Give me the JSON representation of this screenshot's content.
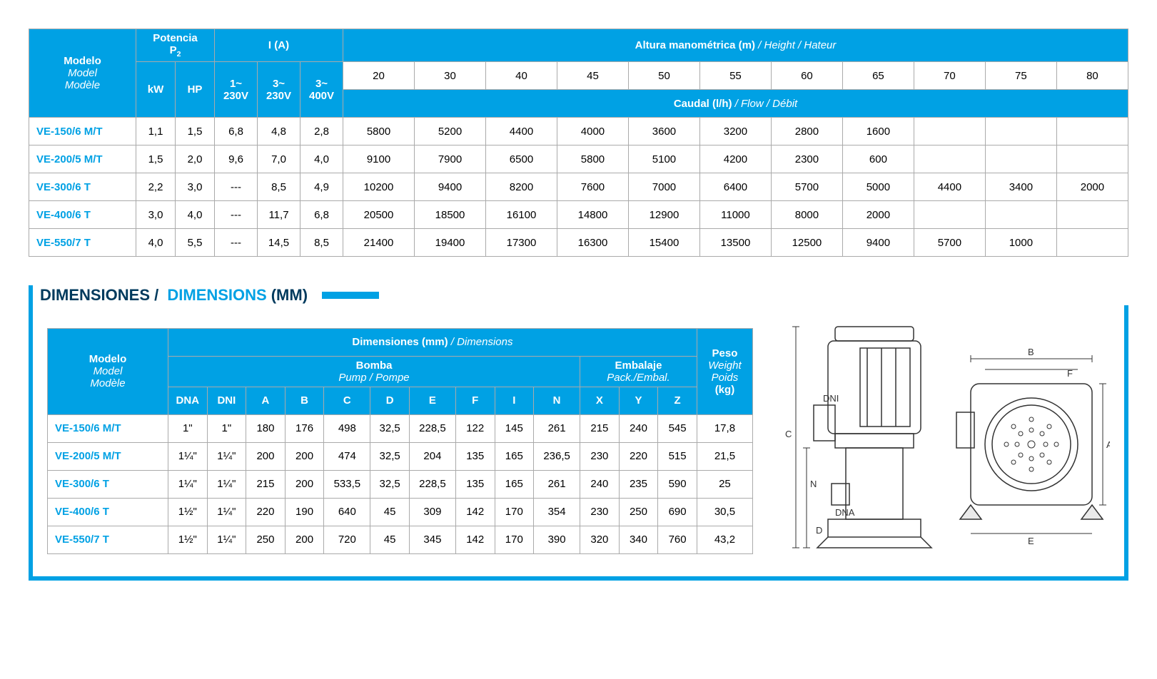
{
  "colors": {
    "header_bg": "#00a1e4",
    "header_text": "#ffffff",
    "border": "#aaaaaa",
    "model_text": "#00a1e4",
    "title_dark": "#003a5d"
  },
  "perf_table": {
    "headers": {
      "model": "Modelo\nModel\nModèle",
      "power": "Potencia",
      "power_sub": "P",
      "power_sub2": "2",
      "kw": "kW",
      "hp": "HP",
      "current": "I (A)",
      "c1": "1~\n230V",
      "c2": "3~\n230V",
      "c3": "3~\n400V",
      "height": "Altura manométrica (m)",
      "height_it": " / Height / Hateur",
      "flow": "Caudal (l/h)",
      "flow_it": " / Flow / Débit",
      "height_vals": [
        "20",
        "30",
        "40",
        "45",
        "50",
        "55",
        "60",
        "65",
        "70",
        "75",
        "80"
      ]
    },
    "rows": [
      {
        "model": "VE-150/6 M/T",
        "kw": "1,1",
        "hp": "1,5",
        "c1": "6,8",
        "c2": "4,8",
        "c3": "2,8",
        "f": [
          "5800",
          "5200",
          "4400",
          "4000",
          "3600",
          "3200",
          "2800",
          "1600",
          "",
          "",
          ""
        ]
      },
      {
        "model": "VE-200/5 M/T",
        "kw": "1,5",
        "hp": "2,0",
        "c1": "9,6",
        "c2": "7,0",
        "c3": "4,0",
        "f": [
          "9100",
          "7900",
          "6500",
          "5800",
          "5100",
          "4200",
          "2300",
          "600",
          "",
          "",
          ""
        ]
      },
      {
        "model": "VE-300/6 T",
        "kw": "2,2",
        "hp": "3,0",
        "c1": "---",
        "c2": "8,5",
        "c3": "4,9",
        "f": [
          "10200",
          "9400",
          "8200",
          "7600",
          "7000",
          "6400",
          "5700",
          "5000",
          "4400",
          "3400",
          "2000"
        ]
      },
      {
        "model": "VE-400/6 T",
        "kw": "3,0",
        "hp": "4,0",
        "c1": "---",
        "c2": "11,7",
        "c3": "6,8",
        "f": [
          "20500",
          "18500",
          "16100",
          "14800",
          "12900",
          "11000",
          "8000",
          "2000",
          "",
          "",
          ""
        ]
      },
      {
        "model": "VE-550/7 T",
        "kw": "4,0",
        "hp": "5,5",
        "c1": "---",
        "c2": "14,5",
        "c3": "8,5",
        "f": [
          "21400",
          "19400",
          "17300",
          "16300",
          "15400",
          "13500",
          "12500",
          "9400",
          "5700",
          "1000",
          ""
        ]
      }
    ]
  },
  "section_title": {
    "a": "DIMENSIONES",
    "b": " / ",
    "c": "DIMENSIONS",
    "d": " (MM)"
  },
  "dim_table": {
    "headers": {
      "model": "Modelo\nModel\nModèle",
      "dims": "Dimensiones (mm)",
      "dims_it": " / Dimensions",
      "pump": "Bomba",
      "pump_it": "Pump / Pompe",
      "pack": "Embalaje",
      "pack_it": "Pack./Embal.",
      "weight": "Peso",
      "weight_it": "Weight\nPoids",
      "kg": "(kg)",
      "cols": [
        "DNA",
        "DNI",
        "A",
        "B",
        "C",
        "D",
        "E",
        "F",
        "I",
        "N",
        "X",
        "Y",
        "Z"
      ]
    },
    "rows": [
      {
        "model": "VE-150/6 M/T",
        "v": [
          "1\"",
          "1\"",
          "180",
          "176",
          "498",
          "32,5",
          "228,5",
          "122",
          "145",
          "261",
          "215",
          "240",
          "545"
        ],
        "kg": "17,8"
      },
      {
        "model": "VE-200/5 M/T",
        "v": [
          "1¼\"",
          "1¼\"",
          "200",
          "200",
          "474",
          "32,5",
          "204",
          "135",
          "165",
          "236,5",
          "230",
          "220",
          "515"
        ],
        "kg": "21,5"
      },
      {
        "model": "VE-300/6 T",
        "v": [
          "1¼\"",
          "1¼\"",
          "215",
          "200",
          "533,5",
          "32,5",
          "228,5",
          "135",
          "165",
          "261",
          "240",
          "235",
          "590"
        ],
        "kg": "25"
      },
      {
        "model": "VE-400/6 T",
        "v": [
          "1½\"",
          "1¼\"",
          "220",
          "190",
          "640",
          "45",
          "309",
          "142",
          "170",
          "354",
          "230",
          "250",
          "690"
        ],
        "kg": "30,5"
      },
      {
        "model": "VE-550/7 T",
        "v": [
          "1½\"",
          "1¼\"",
          "250",
          "200",
          "720",
          "45",
          "345",
          "142",
          "170",
          "390",
          "320",
          "340",
          "760"
        ],
        "kg": "43,2"
      }
    ]
  },
  "diagram_labels": {
    "c": "C",
    "dni": "DNI",
    "n": "N",
    "dna": "DNA",
    "d": "D",
    "a": "A",
    "b": "B",
    "f": "F",
    "e": "E"
  }
}
